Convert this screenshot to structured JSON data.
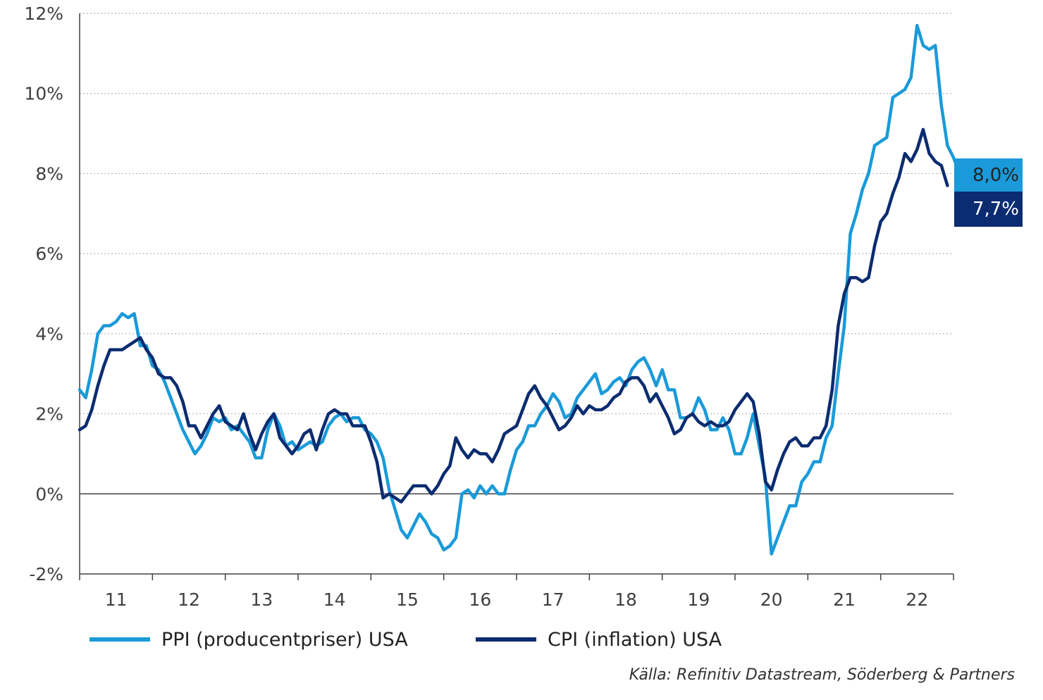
{
  "chart_data": {
    "type": "line",
    "title": "",
    "xlabel": "",
    "ylabel": "",
    "ylim": [
      -2,
      12
    ],
    "y_ticks": [
      "12%",
      "10%",
      "8%",
      "6%",
      "4%",
      "2%",
      "0%",
      "-2%"
    ],
    "y_tick_values": [
      12,
      10,
      8,
      6,
      4,
      2,
      0,
      -2
    ],
    "x_ticks": [
      "11",
      "12",
      "13",
      "14",
      "15",
      "16",
      "17",
      "18",
      "19",
      "20",
      "21",
      "22"
    ],
    "x_range_years": [
      2010.5,
      2022.5
    ],
    "grid": "horizontal dotted",
    "legend_position": "bottom",
    "series": [
      {
        "name": "PPI (producentpriser) USA",
        "color": "#1a9ad9",
        "end_label": "8,0%",
        "start_year": 2010.5,
        "values": [
          2.6,
          2.4,
          3.1,
          4.0,
          4.2,
          4.2,
          4.3,
          4.5,
          4.4,
          4.5,
          3.7,
          3.7,
          3.2,
          3.1,
          2.8,
          2.4,
          2.0,
          1.6,
          1.3,
          1.0,
          1.2,
          1.5,
          1.9,
          1.8,
          1.9,
          1.6,
          1.7,
          1.5,
          1.3,
          0.9,
          0.9,
          1.6,
          2.0,
          1.7,
          1.2,
          1.3,
          1.1,
          1.2,
          1.3,
          1.2,
          1.3,
          1.7,
          1.9,
          2.0,
          1.8,
          1.9,
          1.9,
          1.6,
          1.5,
          1.3,
          0.9,
          0.1,
          -0.4,
          -0.9,
          -1.1,
          -0.8,
          -0.5,
          -0.7,
          -1.0,
          -1.1,
          -1.4,
          -1.3,
          -1.1,
          0.0,
          0.1,
          -0.1,
          0.2,
          0.0,
          0.2,
          0.0,
          0.0,
          0.6,
          1.1,
          1.3,
          1.7,
          1.7,
          2.0,
          2.2,
          2.5,
          2.3,
          1.9,
          2.0,
          2.4,
          2.6,
          2.8,
          3.0,
          2.5,
          2.6,
          2.8,
          2.9,
          2.7,
          3.1,
          3.3,
          3.4,
          3.1,
          2.7,
          3.1,
          2.6,
          2.6,
          1.9,
          1.9,
          2.0,
          2.4,
          2.1,
          1.6,
          1.6,
          1.9,
          1.6,
          1.0,
          1.0,
          1.4,
          2.0,
          1.2,
          0.4,
          -1.5,
          -1.1,
          -0.7,
          -0.3,
          -0.3,
          0.3,
          0.5,
          0.8,
          0.8,
          1.4,
          1.7,
          3.0,
          4.2,
          6.5,
          7.0,
          7.6,
          8.0,
          8.7,
          8.8,
          8.9,
          9.9,
          10.0,
          10.1,
          10.4,
          11.7,
          11.2,
          11.1,
          11.2,
          9.7,
          8.7,
          8.4,
          8.0
        ]
      },
      {
        "name": "CPI (inflation) USA",
        "color": "#0b2c70",
        "end_label": "7,7%",
        "start_year": 2010.5,
        "values": [
          1.6,
          1.7,
          2.1,
          2.7,
          3.2,
          3.6,
          3.6,
          3.6,
          3.7,
          3.8,
          3.9,
          3.6,
          3.4,
          3.0,
          2.9,
          2.9,
          2.7,
          2.3,
          1.7,
          1.7,
          1.4,
          1.7,
          2.0,
          2.2,
          1.8,
          1.7,
          1.6,
          2.0,
          1.5,
          1.1,
          1.5,
          1.8,
          2.0,
          1.4,
          1.2,
          1.0,
          1.2,
          1.5,
          1.6,
          1.1,
          1.6,
          2.0,
          2.1,
          2.0,
          2.0,
          1.7,
          1.7,
          1.7,
          1.3,
          0.8,
          -0.1,
          0.0,
          -0.1,
          -0.2,
          0.0,
          0.2,
          0.2,
          0.2,
          0.0,
          0.2,
          0.5,
          0.7,
          1.4,
          1.1,
          0.9,
          1.1,
          1.0,
          1.0,
          0.8,
          1.1,
          1.5,
          1.6,
          1.7,
          2.1,
          2.5,
          2.7,
          2.4,
          2.2,
          1.9,
          1.6,
          1.7,
          1.9,
          2.2,
          2.0,
          2.2,
          2.1,
          2.1,
          2.2,
          2.4,
          2.5,
          2.8,
          2.9,
          2.9,
          2.7,
          2.3,
          2.5,
          2.2,
          1.9,
          1.5,
          1.6,
          1.9,
          2.0,
          1.8,
          1.7,
          1.8,
          1.7,
          1.7,
          1.8,
          2.1,
          2.3,
          2.5,
          2.3,
          1.5,
          0.3,
          0.1,
          0.6,
          1.0,
          1.3,
          1.4,
          1.2,
          1.2,
          1.4,
          1.4,
          1.7,
          2.6,
          4.2,
          5.0,
          5.4,
          5.4,
          5.3,
          5.4,
          6.2,
          6.8,
          7.0,
          7.5,
          7.9,
          8.5,
          8.3,
          8.6,
          9.1,
          8.5,
          8.3,
          8.2,
          7.7
        ]
      }
    ]
  },
  "legend": {
    "ppi_label": "PPI (producentpriser) USA",
    "cpi_label": "CPI (inflation) USA"
  },
  "badges": {
    "ppi": "8,0%",
    "cpi": "7,7%"
  },
  "source": "Källa: Refinitiv Datastream, Söderberg & Partners"
}
